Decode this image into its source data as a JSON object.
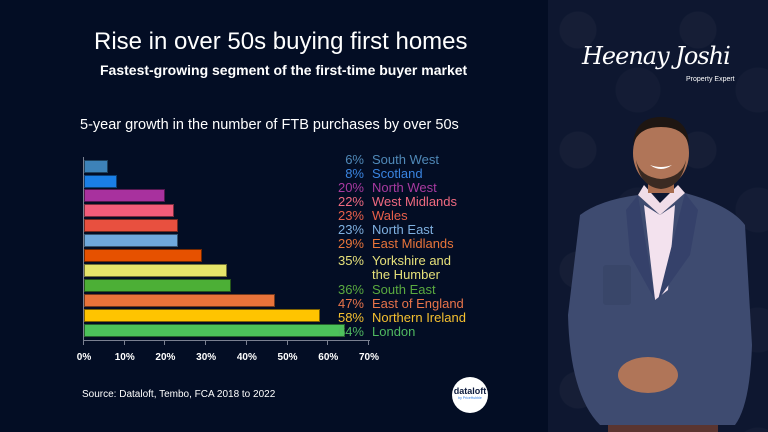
{
  "header": {
    "title": "Rise in over 50s buying first homes",
    "subtitle": "Fastest-growing segment of the first-time buyer market"
  },
  "chart_title": "5-year growth in the number of FTB purchases by over 50s",
  "source": "Source: Dataloft, Tembo, FCA 2018 to 2022",
  "logo": {
    "main": "dataloft",
    "by": "by PriceHubble"
  },
  "brand": {
    "name": "Heenay Joshi",
    "tagline": "Property Expert"
  },
  "colors": {
    "background": "#030d24",
    "panel": "#0e1730"
  },
  "chart_data": {
    "type": "bar",
    "orientation": "horizontal",
    "title": "5-year growth in the number of FTB purchases by over 50s",
    "xlabel": "",
    "ylabel": "",
    "xlim": [
      0,
      70
    ],
    "x_ticks": [
      "0%",
      "10%",
      "20%",
      "30%",
      "40%",
      "50%",
      "60%",
      "70%"
    ],
    "grid": false,
    "legend_position": "right",
    "categories": [
      "South West",
      "Scotland",
      "North West",
      "West Midlands",
      "Wales",
      "North East",
      "East Midlands",
      "Yorkshire and the Humber",
      "South East",
      "East of England",
      "Northern Ireland",
      "London"
    ],
    "values": [
      6,
      8,
      20,
      22,
      23,
      23,
      29,
      35,
      36,
      47,
      58,
      64
    ],
    "value_labels": [
      "6%",
      "8%",
      "20%",
      "22%",
      "23%",
      "23%",
      "29%",
      "35%",
      "36%",
      "47%",
      "58%",
      "64%"
    ],
    "colors": [
      "#3d82b8",
      "#1a7fe6",
      "#a8319e",
      "#f25c7a",
      "#e8503f",
      "#6fa8dc",
      "#e65100",
      "#e6e56a",
      "#4caf36",
      "#e8733a",
      "#ffc400",
      "#4cc25a"
    ],
    "label_colors": [
      "#5089b8",
      "#3a84e0",
      "#a83aa0",
      "#f06a80",
      "#e8604a",
      "#7fb0e0",
      "#e8743a",
      "#e6e07a",
      "#5aaa40",
      "#e8744a",
      "#f5c030",
      "#50b860"
    ]
  }
}
